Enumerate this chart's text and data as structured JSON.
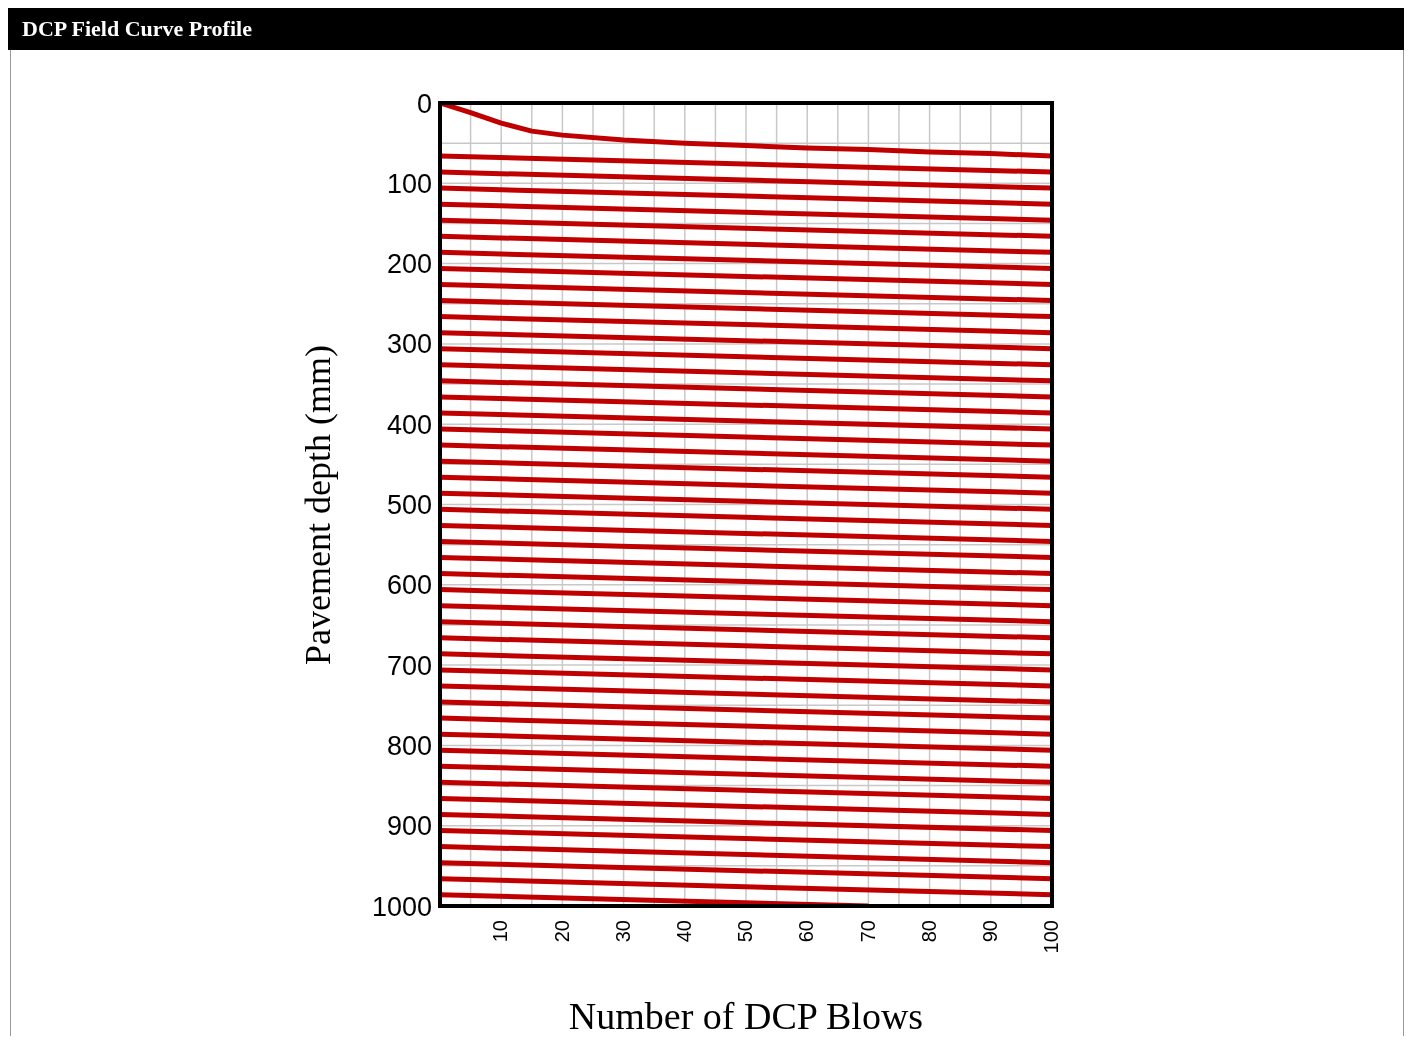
{
  "chart_data": {
    "type": "line",
    "title": "DCP Field Curve Profile",
    "xlabel": "Number of DCP Blows",
    "ylabel": "Pavement depth (mm)",
    "xlim": [
      0,
      100
    ],
    "xticks": [
      {
        "value": 0,
        "label": null
      },
      {
        "value": 5,
        "label": null
      },
      10,
      {
        "value": 15,
        "label": null
      },
      20,
      {
        "value": 25,
        "label": null
      },
      30,
      {
        "value": 35,
        "label": null
      },
      40,
      {
        "value": 45,
        "label": null
      },
      50,
      {
        "value": 55,
        "label": null
      },
      60,
      {
        "value": 65,
        "label": null
      },
      70,
      {
        "value": 75,
        "label": null
      },
      80,
      {
        "value": 85,
        "label": null
      },
      90,
      {
        "value": 95,
        "label": null
      },
      100
    ],
    "ylim": [
      1000,
      0
    ],
    "yticks": [
      0,
      {
        "value": 50,
        "label": null
      },
      100,
      {
        "value": 150,
        "label": null
      },
      200,
      {
        "value": 250,
        "label": null
      },
      300,
      {
        "value": 350,
        "label": null
      },
      400,
      {
        "value": 450,
        "label": null
      },
      500,
      {
        "value": 550,
        "label": null
      },
      600,
      {
        "value": 650,
        "label": null
      },
      700,
      {
        "value": 750,
        "label": null
      },
      800,
      {
        "value": 850,
        "label": null
      },
      900,
      {
        "value": 950,
        "label": null
      },
      1000
    ],
    "grid": true,
    "marker": "none",
    "line_style": "solid",
    "series": [
      {
        "color": "#c00000",
        "x": [
          0,
          5,
          10,
          15,
          20,
          30,
          40,
          50,
          60,
          70,
          80,
          90,
          100
        ],
        "values": [
          0,
          12,
          25,
          35,
          40,
          46,
          50,
          53,
          56,
          58,
          61,
          63,
          66
        ]
      },
      {
        "color": "#c00000",
        "x": [
          0,
          100
        ],
        "values": [
          66,
          86
        ]
      },
      {
        "color": "#c00000",
        "x": [
          0,
          100
        ],
        "values": [
          86,
          106
        ]
      },
      {
        "color": "#c00000",
        "x": [
          0,
          100
        ],
        "values": [
          106,
          126
        ]
      },
      {
        "color": "#c00000",
        "x": [
          0,
          100
        ],
        "values": [
          126,
          146
        ]
      },
      {
        "color": "#c00000",
        "x": [
          0,
          100
        ],
        "values": [
          146,
          166
        ]
      },
      {
        "color": "#c00000",
        "x": [
          0,
          100
        ],
        "values": [
          166,
          186
        ]
      },
      {
        "color": "#c00000",
        "x": [
          0,
          100
        ],
        "values": [
          186,
          206
        ]
      },
      {
        "color": "#c00000",
        "x": [
          0,
          100
        ],
        "values": [
          206,
          226
        ]
      },
      {
        "color": "#c00000",
        "x": [
          0,
          100
        ],
        "values": [
          226,
          246
        ]
      },
      {
        "color": "#c00000",
        "x": [
          0,
          100
        ],
        "values": [
          246,
          266
        ]
      },
      {
        "color": "#c00000",
        "x": [
          0,
          100
        ],
        "values": [
          266,
          286
        ]
      },
      {
        "color": "#c00000",
        "x": [
          0,
          100
        ],
        "values": [
          286,
          306
        ]
      },
      {
        "color": "#c00000",
        "x": [
          0,
          100
        ],
        "values": [
          306,
          326
        ]
      },
      {
        "color": "#c00000",
        "x": [
          0,
          100
        ],
        "values": [
          326,
          346
        ]
      },
      {
        "color": "#c00000",
        "x": [
          0,
          100
        ],
        "values": [
          346,
          366
        ]
      },
      {
        "color": "#c00000",
        "x": [
          0,
          100
        ],
        "values": [
          366,
          386
        ]
      },
      {
        "color": "#c00000",
        "x": [
          0,
          100
        ],
        "values": [
          386,
          406
        ]
      },
      {
        "color": "#c00000",
        "x": [
          0,
          100
        ],
        "values": [
          406,
          426
        ]
      },
      {
        "color": "#c00000",
        "x": [
          0,
          100
        ],
        "values": [
          426,
          446
        ]
      },
      {
        "color": "#c00000",
        "x": [
          0,
          100
        ],
        "values": [
          446,
          466
        ]
      },
      {
        "color": "#c00000",
        "x": [
          0,
          100
        ],
        "values": [
          466,
          486
        ]
      },
      {
        "color": "#c00000",
        "x": [
          0,
          100
        ],
        "values": [
          486,
          506
        ]
      },
      {
        "color": "#c00000",
        "x": [
          0,
          100
        ],
        "values": [
          506,
          526
        ]
      },
      {
        "color": "#c00000",
        "x": [
          0,
          100
        ],
        "values": [
          526,
          546
        ]
      },
      {
        "color": "#c00000",
        "x": [
          0,
          100
        ],
        "values": [
          546,
          566
        ]
      },
      {
        "color": "#c00000",
        "x": [
          0,
          100
        ],
        "values": [
          566,
          586
        ]
      },
      {
        "color": "#c00000",
        "x": [
          0,
          100
        ],
        "values": [
          586,
          606
        ]
      },
      {
        "color": "#c00000",
        "x": [
          0,
          100
        ],
        "values": [
          606,
          626
        ]
      },
      {
        "color": "#c00000",
        "x": [
          0,
          100
        ],
        "values": [
          626,
          646
        ]
      },
      {
        "color": "#c00000",
        "x": [
          0,
          100
        ],
        "values": [
          646,
          666
        ]
      },
      {
        "color": "#c00000",
        "x": [
          0,
          100
        ],
        "values": [
          666,
          686
        ]
      },
      {
        "color": "#c00000",
        "x": [
          0,
          100
        ],
        "values": [
          686,
          706
        ]
      },
      {
        "color": "#c00000",
        "x": [
          0,
          100
        ],
        "values": [
          706,
          726
        ]
      },
      {
        "color": "#c00000",
        "x": [
          0,
          100
        ],
        "values": [
          726,
          746
        ]
      },
      {
        "color": "#c00000",
        "x": [
          0,
          100
        ],
        "values": [
          746,
          766
        ]
      },
      {
        "color": "#c00000",
        "x": [
          0,
          100
        ],
        "values": [
          766,
          786
        ]
      },
      {
        "color": "#c00000",
        "x": [
          0,
          100
        ],
        "values": [
          786,
          806
        ]
      },
      {
        "color": "#c00000",
        "x": [
          0,
          100
        ],
        "values": [
          806,
          826
        ]
      },
      {
        "color": "#c00000",
        "x": [
          0,
          100
        ],
        "values": [
          826,
          846
        ]
      },
      {
        "color": "#c00000",
        "x": [
          0,
          100
        ],
        "values": [
          846,
          866
        ]
      },
      {
        "color": "#c00000",
        "x": [
          0,
          100
        ],
        "values": [
          866,
          886
        ]
      },
      {
        "color": "#c00000",
        "x": [
          0,
          100
        ],
        "values": [
          886,
          906
        ]
      },
      {
        "color": "#c00000",
        "x": [
          0,
          100
        ],
        "values": [
          906,
          926
        ]
      },
      {
        "color": "#c00000",
        "x": [
          0,
          100
        ],
        "values": [
          926,
          946
        ]
      },
      {
        "color": "#c00000",
        "x": [
          0,
          100
        ],
        "values": [
          946,
          966
        ]
      },
      {
        "color": "#c00000",
        "x": [
          0,
          100
        ],
        "values": [
          966,
          986
        ]
      },
      {
        "color": "#c00000",
        "x": [
          0,
          70
        ],
        "values": [
          986,
          1000
        ]
      }
    ]
  }
}
